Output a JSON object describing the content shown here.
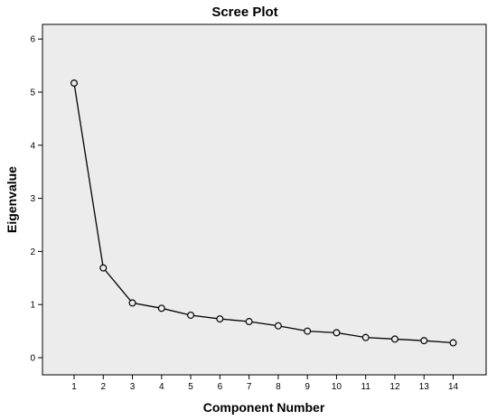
{
  "chart_data": {
    "type": "line",
    "title": "Scree Plot",
    "xlabel": "Component Number",
    "ylabel": "Eigenvalue",
    "x": [
      1,
      2,
      3,
      4,
      5,
      6,
      7,
      8,
      9,
      10,
      11,
      12,
      13,
      14
    ],
    "series": [
      {
        "values": [
          5.17,
          1.69,
          1.03,
          0.93,
          0.8,
          0.73,
          0.68,
          0.6,
          0.5,
          0.47,
          0.38,
          0.35,
          0.32,
          0.28
        ]
      }
    ],
    "xlim": [
      1,
      14
    ],
    "ylim": [
      0,
      6
    ],
    "yticks": [
      0,
      1,
      2,
      3,
      4,
      5,
      6
    ],
    "grid": false,
    "legend": "none",
    "colors": {
      "plot_background": "#ececec",
      "line": "#000000",
      "marker_fill": "#ececec",
      "frame": "#000000"
    }
  }
}
